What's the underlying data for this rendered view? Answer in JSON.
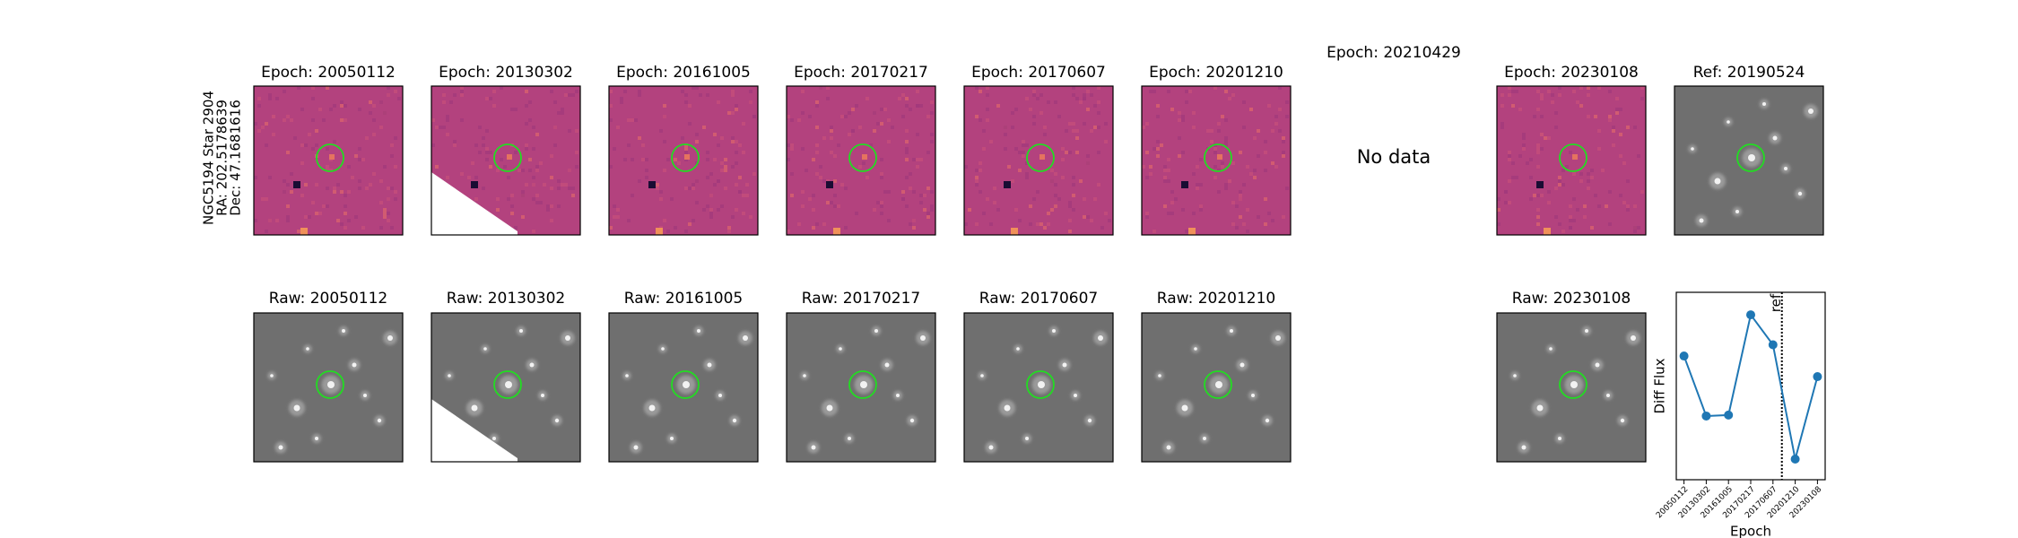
{
  "object": {
    "lines": [
      "NGC5194 Star 2904",
      "RA: 202.5178639",
      "Dec: 47.1681616"
    ]
  },
  "diff_panels": [
    {
      "title": "Epoch: 20050112"
    },
    {
      "title": "Epoch: 20130302"
    },
    {
      "title": "Epoch: 20161005"
    },
    {
      "title": "Epoch: 20170217"
    },
    {
      "title": "Epoch: 20170607"
    },
    {
      "title": "Epoch: 20201210"
    },
    {
      "title": "Epoch: 20210429",
      "note": "No data"
    },
    {
      "title": "Epoch: 20230108"
    },
    {
      "title": "Ref: 20190524"
    }
  ],
  "raw_panels": [
    {
      "title": "Raw: 20050112"
    },
    {
      "title": "Raw: 20130302"
    },
    {
      "title": "Raw: 20161005"
    },
    {
      "title": "Raw: 20170217"
    },
    {
      "title": "Raw: 20170607"
    },
    {
      "title": "Raw: 20201210"
    },
    {
      "title": "Raw: 20230108"
    }
  ],
  "chart_data": {
    "type": "line",
    "xlabel": "Epoch",
    "ylabel": "Diff Flux",
    "categories": [
      "20050112",
      "20130302",
      "20161005",
      "20170217",
      "20170607",
      "20201210",
      "20230108"
    ],
    "values": [
      0.66,
      0.34,
      0.345,
      0.88,
      0.72,
      0.11,
      0.55
    ],
    "color": "#1f77b4",
    "ylim": [
      0,
      1
    ],
    "annotation": {
      "label": "ref",
      "x": 4.4
    }
  }
}
